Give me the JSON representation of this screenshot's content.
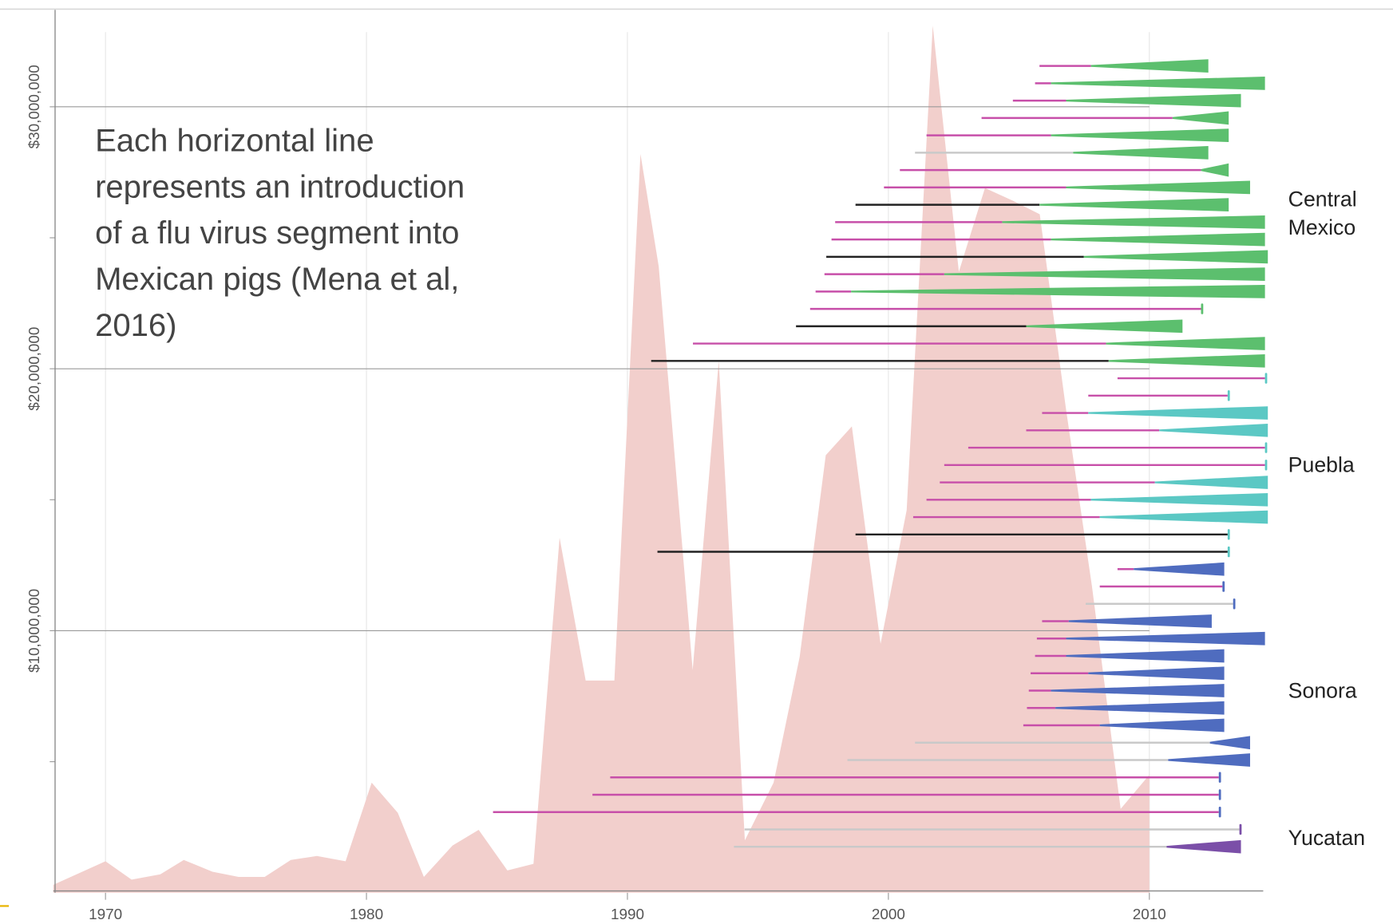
{
  "chart_data": {
    "type": "area",
    "annotation": [
      "Each horizontal line",
      "represents an introduction",
      "of a flu virus segment into",
      "Mexican pigs (Mena et al,",
      "2016)"
    ],
    "x": [
      1968,
      1970,
      1971,
      1972.1,
      1973,
      1974.1,
      1975.1,
      1976.1,
      1977.1,
      1978.1,
      1979.2,
      1980.2,
      1981.2,
      1982.2,
      1983.3,
      1984.3,
      1985.4,
      1986.4,
      1987.4,
      1988.4,
      1989.5,
      1990.5,
      1991.2,
      1992.5,
      1993.5,
      1994.5,
      1995.6,
      1996.6,
      1997.6,
      1998.6,
      1999.7,
      2000.7,
      2001.7,
      2002.7,
      2003.7,
      2004.8,
      2005.8,
      2006.8,
      2007.8,
      2008.9,
      2010
    ],
    "series": [
      {
        "color": "#f2cfcc",
        "values": [
          300000,
          1200000,
          500000,
          700000,
          1250000,
          800000,
          600000,
          600000,
          1250000,
          1400000,
          1200000,
          4200000,
          3050000,
          600000,
          1800000,
          2400000,
          850000,
          1100000,
          13550000,
          8100000,
          8100000,
          28200000,
          23900000,
          8500000,
          20300000,
          2000000,
          4200000,
          9000000,
          16700000,
          17800000,
          9500000,
          14600000,
          33100000,
          23700000,
          26900000,
          26400000,
          25900000,
          18500000,
          11700000,
          3200000,
          4500000
        ]
      }
    ],
    "xlim": [
      1968,
      2014.5
    ],
    "ylim": [
      0,
      33700000
    ],
    "xticks": [
      1970,
      1980,
      1990,
      2000,
      2010
    ],
    "yticks": [
      {
        "value": 10000000,
        "label": "$10,000,000"
      },
      {
        "value": 20000000,
        "label": "$20,000,000"
      },
      {
        "value": 30000000,
        "label": "$30,000,000"
      }
    ],
    "yminorticks": [
      5000000,
      15000000,
      25000000
    ],
    "grid": true,
    "groups": [
      {
        "label_lines": [
          "Central",
          "Mexico"
        ],
        "color": "#5cbf6e",
        "lines": [
          [
            2005.79,
            2007.76,
            2012.26,
            "#c74fa9"
          ],
          [
            2005.62,
            2006.23,
            2014.43,
            "#c74fa9"
          ],
          [
            2004.77,
            2006.81,
            2013.51,
            "#c74fa9"
          ],
          [
            2003.57,
            2010.89,
            2013.04,
            "#c74fa9"
          ],
          [
            2001.46,
            2006.23,
            2013.04,
            "#c74fa9"
          ],
          [
            2001.02,
            2007.08,
            2012.26,
            "#c9c9c9"
          ],
          [
            2000.44,
            2011.98,
            2013.04,
            "#c74fa9"
          ],
          [
            1999.83,
            2006.81,
            2013.86,
            "#c74fa9"
          ],
          [
            1998.74,
            2005.79,
            2013.04,
            "#222222"
          ],
          [
            1997.96,
            2004.36,
            2014.43,
            "#c74fa9"
          ],
          [
            1997.82,
            2006.23,
            2014.43,
            "#c74fa9"
          ],
          [
            1997.62,
            2007.49,
            2014.54,
            "#222222"
          ],
          [
            1997.55,
            2002.14,
            2014.43,
            "#c74fa9"
          ],
          [
            1997.21,
            1998.57,
            2014.43,
            "#c74fa9"
          ],
          [
            1997.0,
            2011.98,
            2012.05,
            "#c74fa9"
          ],
          [
            1996.46,
            2005.28,
            2011.27,
            "#222222"
          ],
          [
            1992.51,
            2008.34,
            2014.43,
            "#c74fa9"
          ],
          [
            1990.91,
            2008.44,
            2014.43,
            "#222222"
          ]
        ]
      },
      {
        "label_lines": [
          "Puebla"
        ],
        "color": "#5bc8c4",
        "lines": [
          [
            2008.78,
            2014.43,
            2014.5,
            "#c74fa9"
          ],
          [
            2007.66,
            2013.0,
            2013.07,
            "#c74fa9"
          ],
          [
            2005.89,
            2007.66,
            2014.54,
            "#c74fa9"
          ],
          [
            2005.28,
            2010.38,
            2014.54,
            "#c74fa9"
          ],
          [
            2003.06,
            2014.43,
            2014.5,
            "#c74fa9"
          ],
          [
            2002.14,
            2014.43,
            2014.5,
            "#c74fa9"
          ],
          [
            2001.97,
            2010.21,
            2014.54,
            "#c74fa9"
          ],
          [
            2001.46,
            2007.76,
            2014.54,
            "#c74fa9"
          ],
          [
            2000.95,
            2008.1,
            2014.54,
            "#c74fa9"
          ],
          [
            1998.74,
            2013.0,
            2013.07,
            "#222222"
          ],
          [
            1991.15,
            2013.0,
            2013.07,
            "#222222"
          ]
        ]
      },
      {
        "label_lines": [
          "Sonora"
        ],
        "color": "#4f6cbf",
        "lines": [
          [
            2008.78,
            2009.4,
            2012.87,
            "#c74fa9"
          ],
          [
            2008.1,
            2012.8,
            2012.87,
            "#c74fa9"
          ],
          [
            2007.56,
            2013.21,
            2013.28,
            "#c9c9c9"
          ],
          [
            2005.89,
            2006.91,
            2012.39,
            "#c74fa9"
          ],
          [
            2005.69,
            2006.81,
            2014.43,
            "#c74fa9"
          ],
          [
            2005.62,
            2006.81,
            2012.87,
            "#c74fa9"
          ],
          [
            2005.45,
            2007.66,
            2012.87,
            "#c74fa9"
          ],
          [
            2005.38,
            2006.23,
            2012.87,
            "#c74fa9"
          ],
          [
            2005.31,
            2006.4,
            2012.87,
            "#c74fa9"
          ],
          [
            2005.17,
            2008.1,
            2012.87,
            "#c74fa9"
          ],
          [
            2001.02,
            2012.32,
            2013.86,
            "#c9c9c9"
          ],
          [
            1998.43,
            2010.72,
            2013.86,
            "#c9c9c9"
          ],
          [
            1989.34,
            2012.66,
            2012.73,
            "#c74fa9"
          ],
          [
            1988.66,
            2012.66,
            2012.73,
            "#c74fa9"
          ],
          [
            1984.85,
            2012.66,
            2012.73,
            "#c74fa9"
          ]
        ]
      },
      {
        "label_lines": [
          "Yucatan"
        ],
        "color": "#7b4fa8",
        "lines": [
          [
            1994.49,
            2013.45,
            2013.51,
            "#c9c9c9"
          ],
          [
            1994.08,
            2010.66,
            2013.51,
            "#c9c9c9"
          ]
        ]
      }
    ]
  }
}
